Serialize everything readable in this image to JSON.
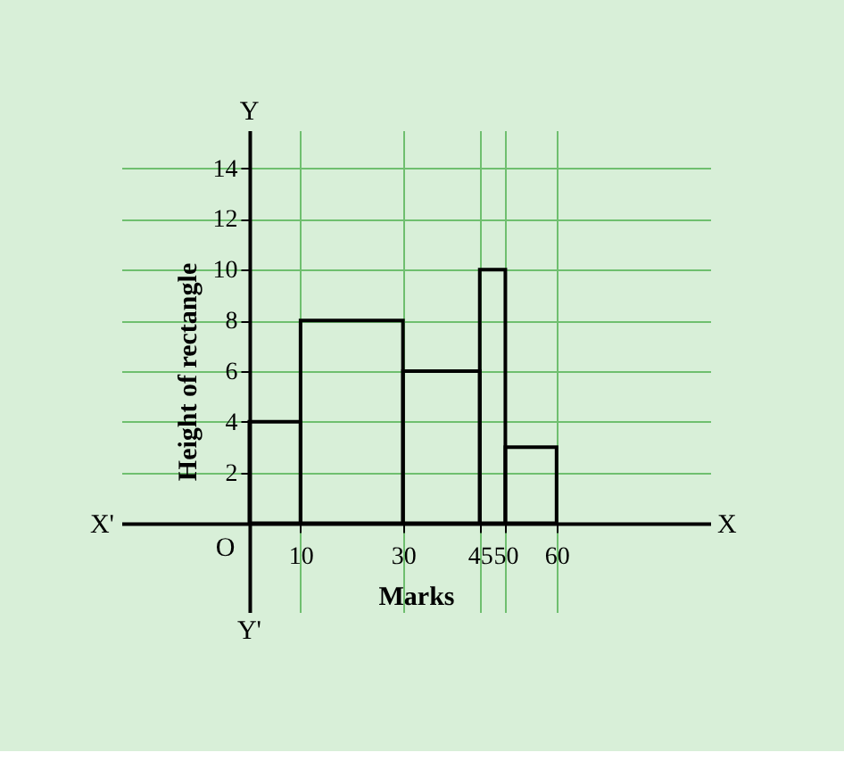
{
  "chart_data": {
    "type": "histogram",
    "xlabel": "Marks",
    "ylabel": "Height of rectangle",
    "bins": [
      0,
      10,
      30,
      45,
      50,
      60
    ],
    "values": [
      4,
      8,
      6,
      10,
      3
    ],
    "color": "#000000",
    "xlim": [
      -25,
      90
    ],
    "ylim": [
      -3.5,
      15.5
    ],
    "xticks": [
      10,
      30,
      45,
      50,
      60
    ],
    "yticks": [
      2,
      4,
      6,
      8,
      10,
      12,
      14
    ],
    "grid": true,
    "annotations": [
      "X'",
      "X",
      "Y",
      "Y'",
      "O"
    ]
  }
}
